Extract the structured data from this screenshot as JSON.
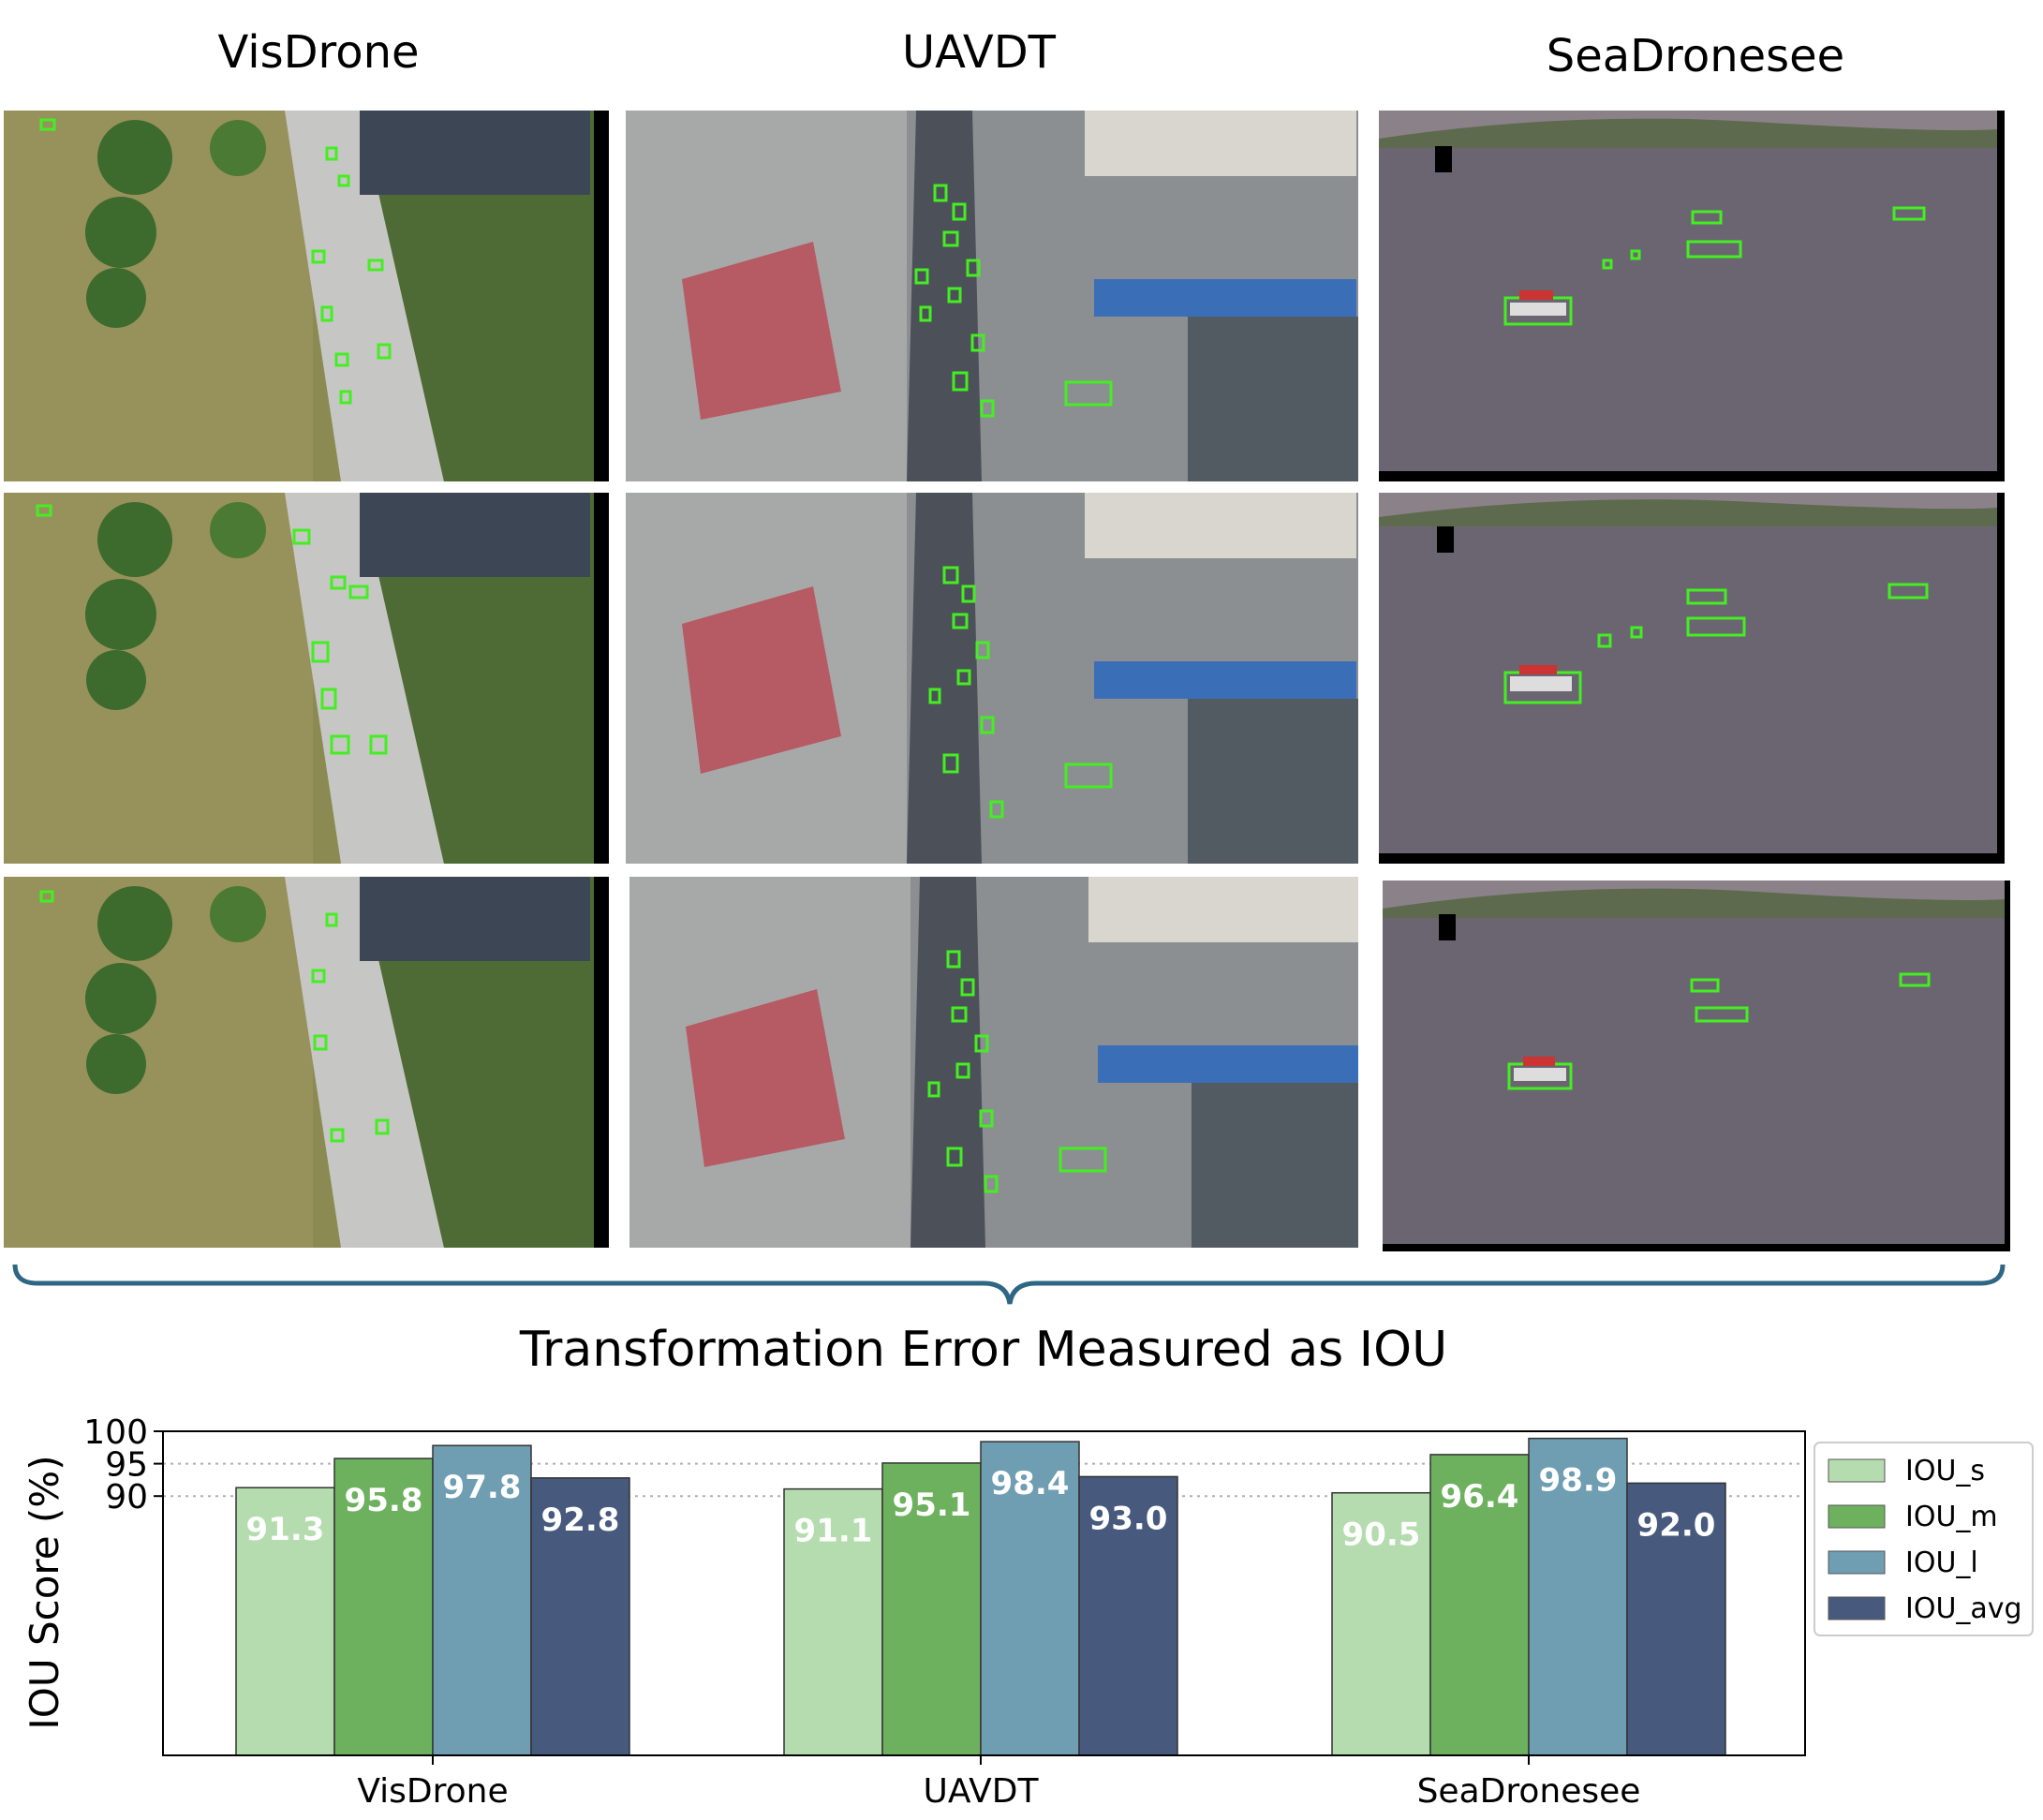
{
  "columns": [
    {
      "name": "VisDrone"
    },
    {
      "name": "UAVDT"
    },
    {
      "name": "SeaDronesee"
    }
  ],
  "chart_data": {
    "type": "bar",
    "title": "Transformation Error Measured as IOU",
    "xlabel": "",
    "ylabel": "IOU Score (%)",
    "categories": [
      "VisDrone",
      "UAVDT",
      "SeaDronesee"
    ],
    "yticks": [
      90,
      95,
      100
    ],
    "ylim": [
      50,
      100
    ],
    "grid": "horizontal dotted",
    "legend": "right",
    "series": [
      {
        "name": "IOU_s",
        "color": "#b5dcae",
        "values": [
          91.3,
          91.1,
          90.5
        ]
      },
      {
        "name": "IOU_m",
        "color": "#6db15e",
        "values": [
          95.8,
          95.1,
          96.4
        ]
      },
      {
        "name": "IOU_l",
        "color": "#6f9db2",
        "values": [
          97.8,
          98.4,
          98.9
        ]
      },
      {
        "name": "IOU_avg",
        "color": "#475a7e",
        "values": [
          92.8,
          93.0,
          92.0
        ]
      }
    ]
  }
}
